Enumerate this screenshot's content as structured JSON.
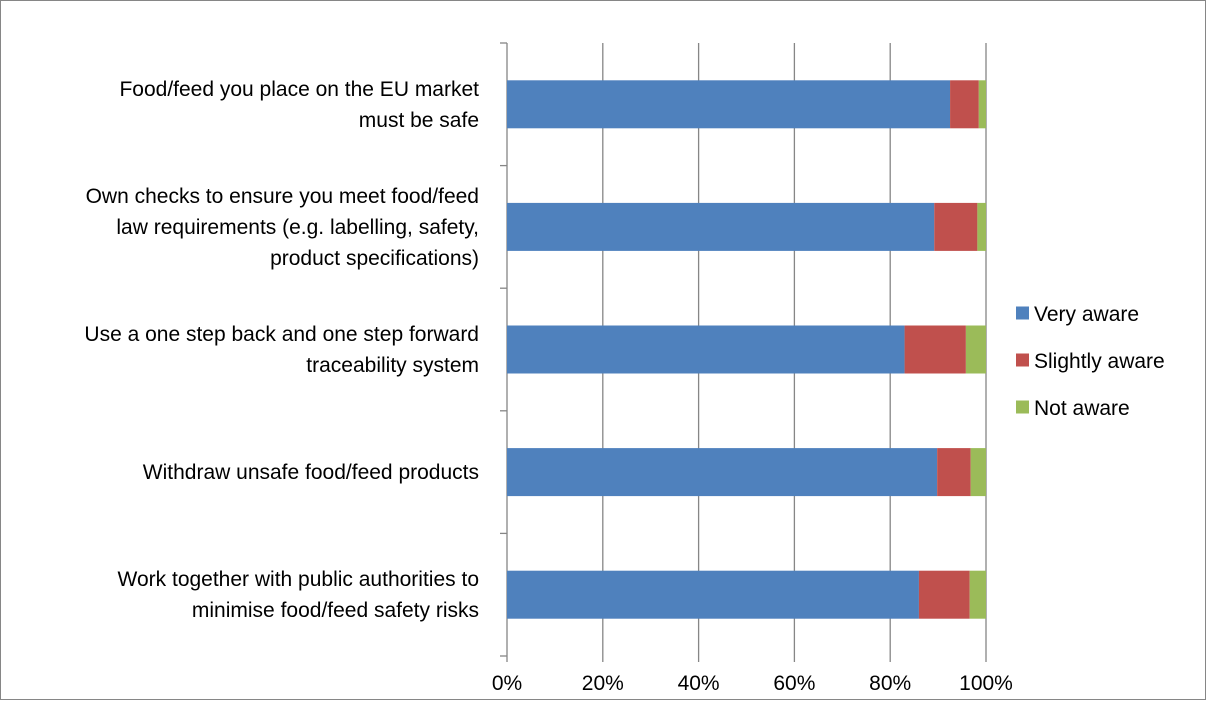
{
  "chart_data": {
    "type": "bar",
    "orientation": "horizontal",
    "stacked": "percent",
    "categories": [
      [
        "Food/feed you place on the EU market",
        "must be safe"
      ],
      [
        "Own checks to ensure you meet food/feed",
        "law requirements (e.g. labelling, safety,",
        "product specifications)"
      ],
      [
        "Use a one step back and one step forward",
        "traceability system"
      ],
      [
        "Withdraw unsafe food/feed products"
      ],
      [
        "Work together with public authorities to",
        "minimise food/feed safety risks"
      ]
    ],
    "series": [
      {
        "name": "Very aware",
        "color": "#4F81BD",
        "values": [
          92.5,
          89.2,
          83.0,
          89.8,
          86.0
        ]
      },
      {
        "name": "Slightly aware",
        "color": "#C0504D",
        "values": [
          6.0,
          9.0,
          12.8,
          7.0,
          10.6
        ]
      },
      {
        "name": "Not aware",
        "color": "#9BBB59",
        "values": [
          1.5,
          1.8,
          4.2,
          3.2,
          3.4
        ]
      }
    ],
    "xlim": [
      0,
      100
    ],
    "x_ticks": [
      "0%",
      "20%",
      "40%",
      "60%",
      "80%",
      "100%"
    ],
    "grid": "vertical",
    "legend": "right"
  }
}
